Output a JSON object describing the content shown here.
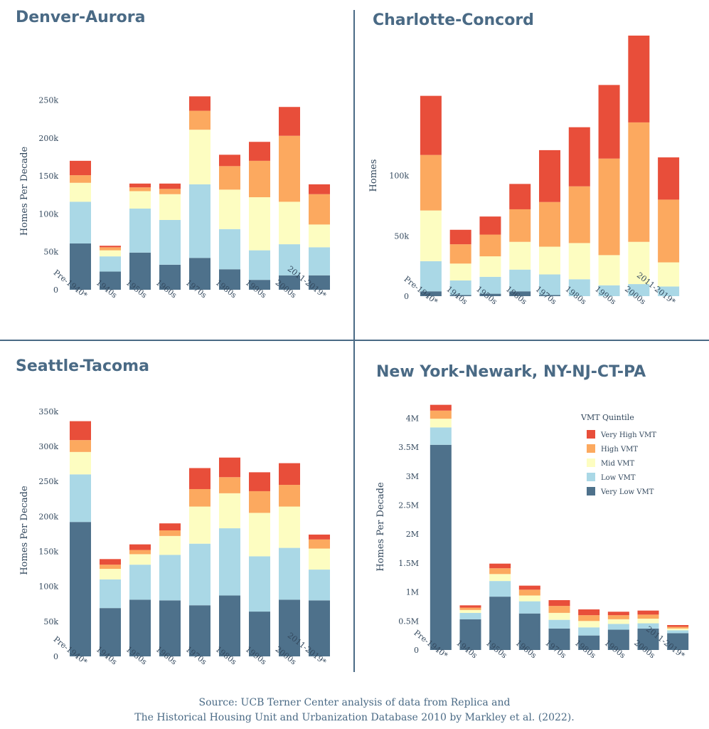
{
  "source": {
    "line1": "Source: UCB Terner Center analysis of data from Replica and",
    "line2": "The Historical Housing Unit and Urbanization Database 2010 by Markley et al. (2022)."
  },
  "legend": {
    "title": "VMT Quintile",
    "items": [
      "Very High VMT",
      "High VMT",
      "Mid VMT",
      "Low VMT",
      "Very Low VMT"
    ]
  },
  "colors": {
    "very_low": "#4e718b",
    "low": "#aad8e6",
    "mid": "#fdfdc1",
    "high": "#fca95f",
    "very_high": "#e84e3a",
    "text": "#4a6a85"
  },
  "chart_data": [
    {
      "type": "bar",
      "stacked": true,
      "title": "Denver-Aurora",
      "ylabel": "Homes Per Decade",
      "categories": [
        "Pre-1940*",
        "1940s",
        "1950s",
        "1960s",
        "1970s",
        "1980s",
        "1990s",
        "2000s",
        "2011-2019*"
      ],
      "ylim": [
        0,
        260000
      ],
      "yticks": [
        0,
        50000,
        100000,
        150000,
        200000,
        250000
      ],
      "ytick_labels": [
        "0",
        "50k",
        "100k",
        "150k",
        "200k",
        "250k"
      ],
      "series": [
        {
          "name": "Very Low VMT",
          "values": [
            61000,
            24000,
            49000,
            33000,
            42000,
            27000,
            13000,
            19000,
            19000
          ]
        },
        {
          "name": "Low VMT",
          "values": [
            55000,
            20000,
            58000,
            59000,
            97000,
            53000,
            39000,
            41000,
            37000
          ]
        },
        {
          "name": "Mid VMT",
          "values": [
            25000,
            8000,
            23000,
            34000,
            72000,
            52000,
            70000,
            56000,
            30000
          ]
        },
        {
          "name": "High VMT",
          "values": [
            10000,
            4000,
            5000,
            7000,
            25000,
            31000,
            48000,
            87000,
            40000
          ]
        },
        {
          "name": "Very High VMT",
          "values": [
            19000,
            2000,
            5000,
            7000,
            19000,
            15000,
            25000,
            38000,
            13000
          ]
        }
      ]
    },
    {
      "type": "bar",
      "stacked": true,
      "title": "Charlotte-Concord",
      "ylabel": "Homes",
      "categories": [
        "Pre-1940*",
        "1940s",
        "1950s",
        "1960s",
        "1970s",
        "1980s",
        "1990s",
        "2000s",
        "2011-2019*"
      ],
      "ylim": [
        0,
        200000
      ],
      "yticks": [
        0,
        50000,
        100000
      ],
      "ytick_labels": [
        "0",
        "50k",
        "100k"
      ],
      "series": [
        {
          "name": "Very Low VMT",
          "values": [
            4000,
            1000,
            2000,
            4000,
            1000,
            0,
            0,
            0,
            0
          ]
        },
        {
          "name": "Low VMT",
          "values": [
            25000,
            12000,
            14000,
            18000,
            17000,
            14000,
            9000,
            10000,
            8000
          ]
        },
        {
          "name": "Mid VMT",
          "values": [
            42000,
            14000,
            17000,
            23000,
            23000,
            30000,
            25000,
            35000,
            20000
          ]
        },
        {
          "name": "High VMT",
          "values": [
            46000,
            16000,
            18000,
            27000,
            37000,
            47000,
            80000,
            99000,
            52000
          ]
        },
        {
          "name": "Very High VMT",
          "values": [
            49000,
            12000,
            15000,
            21000,
            43000,
            49000,
            61000,
            80000,
            35000
          ]
        }
      ]
    },
    {
      "type": "bar",
      "stacked": true,
      "title": "Seattle-Tacoma",
      "ylabel": "Homes Per Decade",
      "categories": [
        "Pre-1940*",
        "1940s",
        "1950s",
        "1960s",
        "1970s",
        "1980s",
        "1990s",
        "2000s",
        "2011-2019*"
      ],
      "ylim": [
        0,
        360000
      ],
      "yticks": [
        0,
        50000,
        100000,
        150000,
        200000,
        250000,
        300000,
        350000
      ],
      "ytick_labels": [
        "0",
        "50k",
        "100k",
        "150k",
        "200k",
        "250k",
        "300k",
        "350k"
      ],
      "series": [
        {
          "name": "Very Low VMT",
          "values": [
            192000,
            69000,
            81000,
            80000,
            73000,
            87000,
            64000,
            81000,
            80000
          ]
        },
        {
          "name": "Low VMT",
          "values": [
            68000,
            41000,
            50000,
            65000,
            88000,
            96000,
            79000,
            74000,
            44000
          ]
        },
        {
          "name": "Mid VMT",
          "values": [
            32000,
            15000,
            15000,
            27000,
            53000,
            50000,
            62000,
            59000,
            30000
          ]
        },
        {
          "name": "High VMT",
          "values": [
            17000,
            6000,
            6000,
            8000,
            25000,
            23000,
            31000,
            31000,
            13000
          ]
        },
        {
          "name": "Very High VMT",
          "values": [
            27000,
            8000,
            8000,
            10000,
            30000,
            28000,
            27000,
            31000,
            7000
          ]
        }
      ]
    },
    {
      "type": "bar",
      "stacked": true,
      "title": "New York-Newark, NY-NJ-CT-PA",
      "ylabel": "Homes Per Decade",
      "legend_title": "VMT Quintile",
      "categories": [
        "Pre-1940*",
        "1940s",
        "1950s",
        "1960s",
        "1970s",
        "1980s",
        "1990s",
        "2000s",
        "2011-2019*"
      ],
      "ylim": [
        0,
        4250000
      ],
      "yticks": [
        0,
        500000,
        1000000,
        1500000,
        2000000,
        2500000,
        3000000,
        3500000,
        4000000
      ],
      "ytick_labels": [
        "0",
        "0.5M",
        "1M",
        "1.5M",
        "2M",
        "2.5M",
        "3M",
        "3.5M",
        "4M"
      ],
      "series": [
        {
          "name": "Very Low VMT",
          "values": [
            3540000,
            530000,
            920000,
            630000,
            370000,
            250000,
            350000,
            370000,
            290000
          ]
        },
        {
          "name": "Low VMT",
          "values": [
            300000,
            110000,
            270000,
            210000,
            150000,
            140000,
            100000,
            90000,
            50000
          ]
        },
        {
          "name": "Mid VMT",
          "values": [
            150000,
            50000,
            120000,
            100000,
            120000,
            110000,
            80000,
            80000,
            30000
          ]
        },
        {
          "name": "High VMT",
          "values": [
            140000,
            40000,
            100000,
            100000,
            120000,
            100000,
            70000,
            70000,
            30000
          ]
        },
        {
          "name": "Very High VMT",
          "values": [
            100000,
            40000,
            80000,
            70000,
            100000,
            100000,
            60000,
            70000,
            30000
          ]
        }
      ]
    }
  ]
}
